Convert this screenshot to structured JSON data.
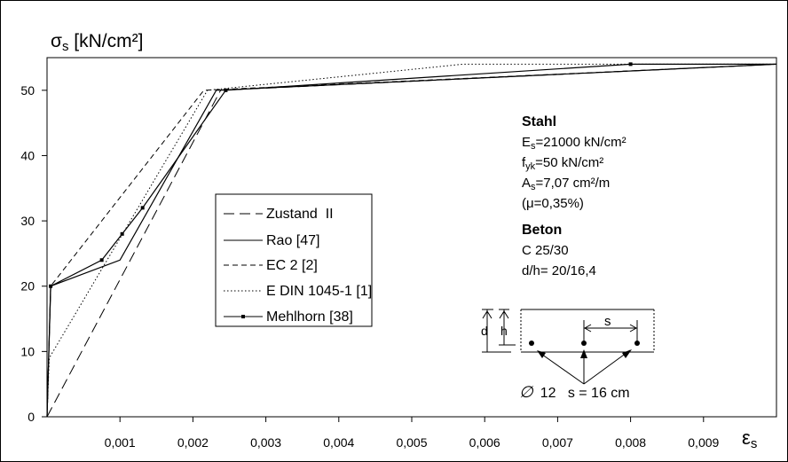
{
  "chart_data": {
    "type": "line",
    "y_axis_title": {
      "symbol": "σ",
      "sub": "s",
      "unit": " [kN/cm²]"
    },
    "x_axis_title": {
      "symbol": "ε",
      "sub": "s"
    },
    "xlim": [
      0,
      0.01
    ],
    "ylim": [
      0,
      55
    ],
    "x_ticks": [
      {
        "v": 0.001,
        "label": "0,001"
      },
      {
        "v": 0.002,
        "label": "0,002"
      },
      {
        "v": 0.003,
        "label": "0,003"
      },
      {
        "v": 0.004,
        "label": "0,004"
      },
      {
        "v": 0.005,
        "label": "0,005"
      },
      {
        "v": 0.006,
        "label": "0,006"
      },
      {
        "v": 0.007,
        "label": "0,007"
      },
      {
        "v": 0.008,
        "label": "0,008"
      },
      {
        "v": 0.009,
        "label": "0,009"
      }
    ],
    "y_ticks": [
      {
        "v": 0,
        "label": "0"
      },
      {
        "v": 10,
        "label": "10"
      },
      {
        "v": 20,
        "label": "20"
      },
      {
        "v": 30,
        "label": "30"
      },
      {
        "v": 40,
        "label": "40"
      },
      {
        "v": 50,
        "label": "50"
      }
    ],
    "series": [
      {
        "name": "Zustand  II",
        "style": "longdash",
        "marker": false,
        "points": [
          [
            0,
            0
          ],
          [
            0.00238,
            50
          ],
          [
            0.0101,
            54
          ]
        ]
      },
      {
        "name": "Rao [47]",
        "style": "solid",
        "marker": false,
        "points": [
          [
            0,
            0
          ],
          [
            5e-05,
            20
          ],
          [
            0.001,
            24
          ],
          [
            0.00232,
            50
          ],
          [
            0.0101,
            54
          ]
        ]
      },
      {
        "name": "EC 2 [2]",
        "style": "dash",
        "marker": false,
        "points": [
          [
            0,
            0
          ],
          [
            5e-05,
            20
          ],
          [
            0.00215,
            50
          ],
          [
            0.0101,
            54
          ]
        ]
      },
      {
        "name": "E DIN 1045-1 [1]",
        "style": "dot",
        "marker": false,
        "points": [
          [
            0,
            0
          ],
          [
            3e-05,
            9
          ],
          [
            0.0022,
            50
          ],
          [
            0.0057,
            54
          ],
          [
            0.0101,
            54
          ]
        ]
      },
      {
        "name": "Mehlhorn [38]",
        "style": "solid",
        "marker": true,
        "points": [
          [
            0,
            0
          ],
          [
            5e-05,
            20
          ],
          [
            0.00075,
            24
          ],
          [
            0.00103,
            28
          ],
          [
            0.00131,
            32
          ],
          [
            0.00245,
            50
          ],
          [
            0.008,
            54
          ],
          [
            0.0101,
            54
          ]
        ]
      }
    ],
    "legend_position": "center-left",
    "info_block": {
      "steel": {
        "title": "Stahl",
        "es": {
          "pre": "E",
          "sub": "s",
          "post": "=21000 kN/cm²"
        },
        "fyk": {
          "pre": "f",
          "sub": "yk",
          "post": "=50 kN/cm²"
        },
        "as": {
          "pre": "A",
          "sub": "s",
          "post": "=7,07 cm²/m"
        },
        "mu": "(μ=0,35%)"
      },
      "concrete": {
        "title": "Beton",
        "class": "C 25/30",
        "dims": "d/h= 20/16,4"
      }
    },
    "section_sketch": {
      "d_label": "d",
      "h_label": "h",
      "s_label": "s",
      "caption_symbol": "∅",
      "caption_text": "12   s = 16 cm"
    }
  }
}
